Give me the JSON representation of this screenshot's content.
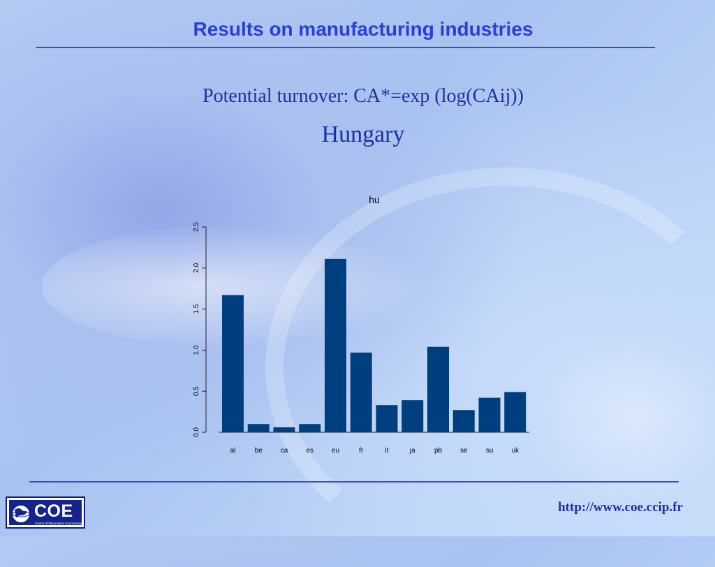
{
  "header": {
    "title": "Results on manufacturing industries",
    "subtitle": "Potential turnover: CA*=exp (log(CAij))",
    "country": "Hungary"
  },
  "footer": {
    "url": "http://www.coe.ccip.fr",
    "logo_text": "COE",
    "logo_subtext": "Centre d'Observation Economique"
  },
  "colors": {
    "accent": "#2a3fd6",
    "bar": "#003f7f"
  },
  "chart_data": {
    "type": "bar",
    "title": "hu",
    "xlabel": "",
    "ylabel": "",
    "categories": [
      "al",
      "be",
      "ca",
      "es",
      "eu",
      "fr",
      "it",
      "ja",
      "pb",
      "se",
      "su",
      "uk"
    ],
    "values": [
      1.67,
      0.1,
      0.06,
      0.1,
      2.11,
      0.97,
      0.33,
      0.39,
      1.04,
      0.27,
      0.42,
      0.49
    ],
    "ylim": [
      0,
      2.5
    ],
    "yticks": [
      "0.0",
      "0.5",
      "1.0",
      "1.5",
      "2.0",
      "2.5"
    ],
    "grid": false,
    "legend": "none"
  }
}
